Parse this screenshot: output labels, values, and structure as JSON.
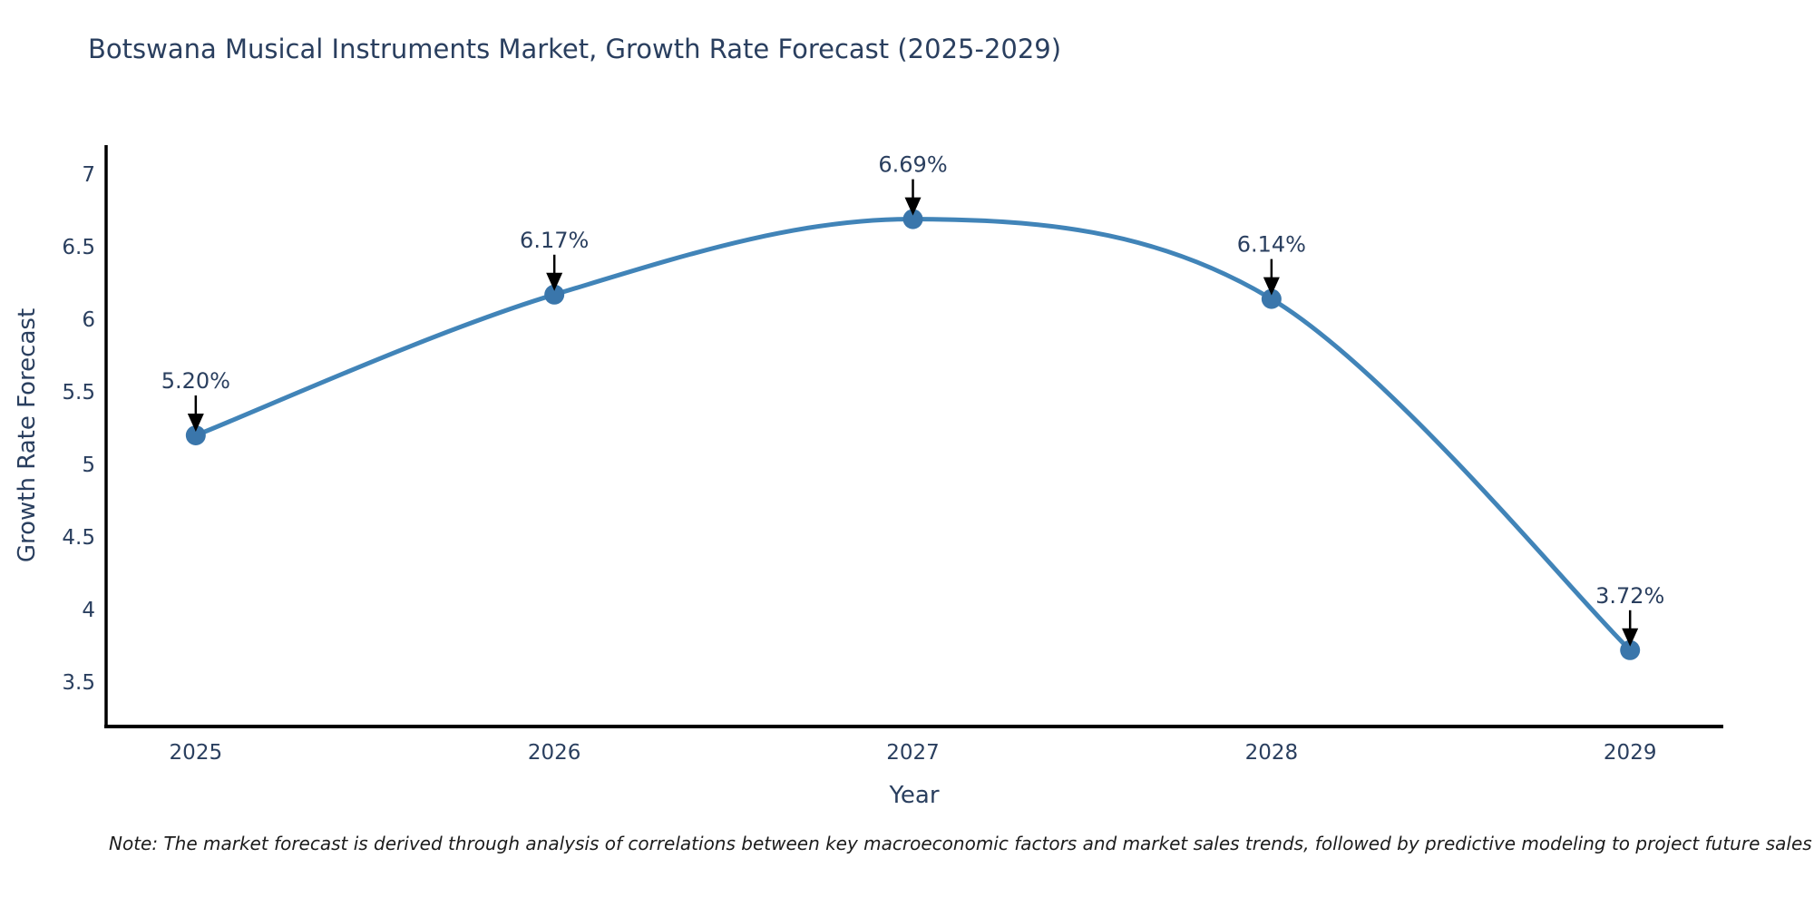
{
  "chart_data": {
    "type": "line",
    "title": "Botswana Musical Instruments Market, Growth Rate Forecast (2025-2029)",
    "xlabel": "Year",
    "ylabel": "Growth Rate Forecast",
    "x": [
      2025,
      2026,
      2027,
      2028,
      2029
    ],
    "y": [
      5.2,
      6.17,
      6.69,
      6.14,
      3.72
    ],
    "point_labels": [
      "5.20%",
      "6.17%",
      "6.69%",
      "6.14%",
      "3.72%"
    ],
    "line_shape": "spline",
    "markers": true,
    "xticks": [
      2025,
      2026,
      2027,
      2028,
      2029
    ],
    "yticks": [
      3.5,
      4,
      4.5,
      5,
      5.5,
      6,
      6.5,
      7
    ],
    "xlim": [
      2024.75,
      2029.26
    ],
    "ylim": [
      3.2,
      7.2
    ],
    "grid": false,
    "legend": "none",
    "colors": {
      "line": "#4184b8",
      "marker": "#3a76ab",
      "axis": "#000000",
      "text": "#2a3f5f",
      "arrow": "#000000"
    }
  },
  "footnote": {
    "text": "Note: The market forecast is derived through analysis of correlations between key macroeconomic factors and market sales trends, followed by predictive modeling to project future sales"
  }
}
